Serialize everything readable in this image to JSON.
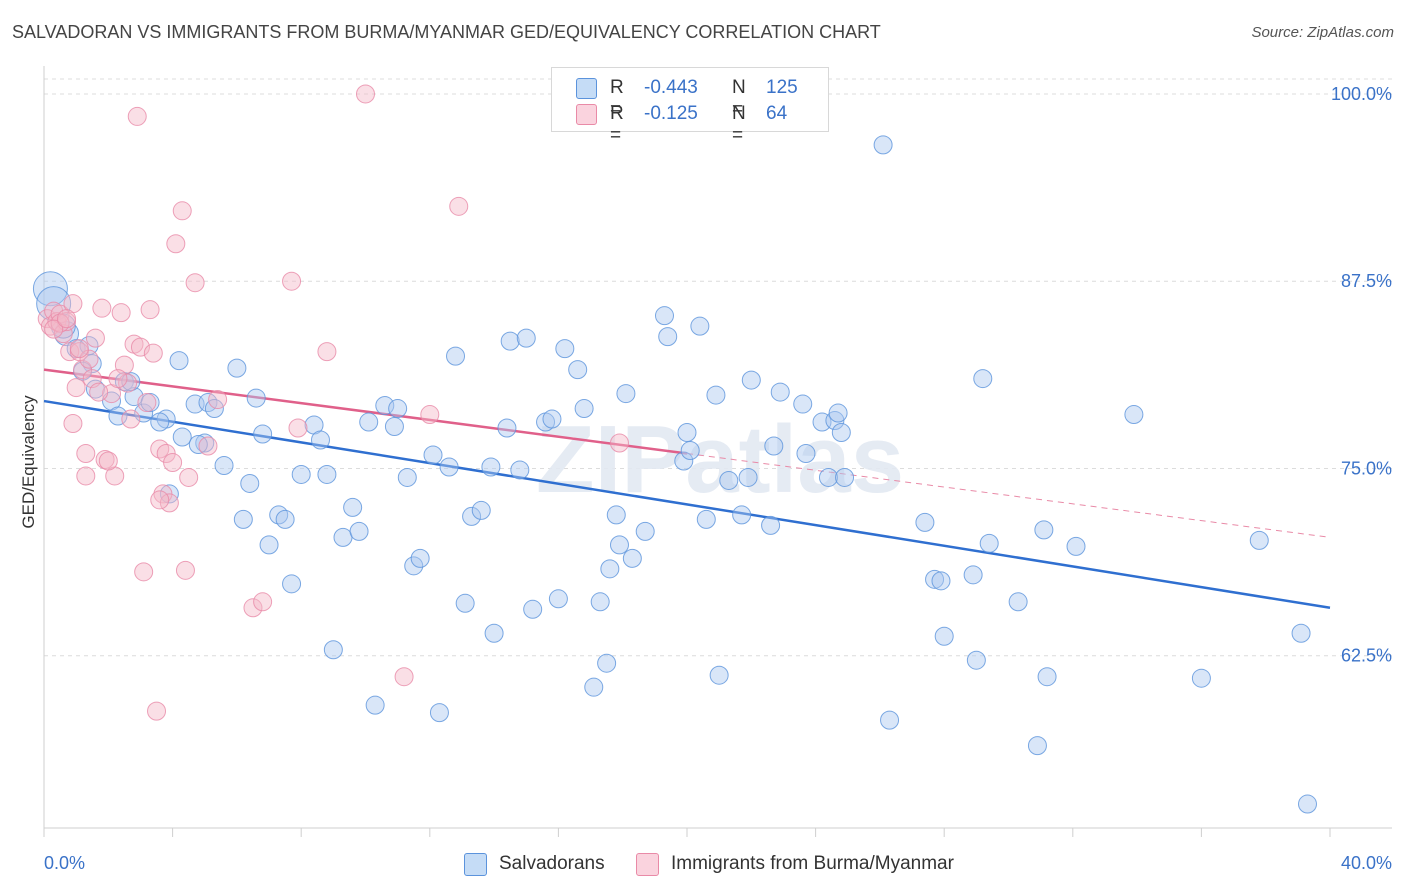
{
  "title": "SALVADORAN VS IMMIGRANTS FROM BURMA/MYANMAR GED/EQUIVALENCY CORRELATION CHART",
  "source": "Source: ZipAtlas.com",
  "watermark": "ZIPatlas",
  "legend": {
    "rows": [
      {
        "r_label": "R =",
        "r_value": "-0.443",
        "n_label": "N =",
        "n_value": "125",
        "color": "#aac8f0"
      },
      {
        "r_label": "R =",
        "r_value": "-0.125",
        "n_label": "N =",
        "n_value": "64",
        "color": "#f5b8c8"
      }
    ]
  },
  "bottom_legend": [
    {
      "label": "Salvadorans",
      "color": "#aac8f0"
    },
    {
      "label": "Immigrants from Burma/Myanmar",
      "color": "#f5b8c8"
    }
  ],
  "chart_data": {
    "type": "scatter",
    "title": "SALVADORAN VS IMMIGRANTS FROM BURMA/MYANMAR GED/EQUIVALENCY CORRELATION CHART",
    "xlabel": "",
    "ylabel": "GED/Equivalency",
    "xlim": [
      0,
      40
    ],
    "ylim": [
      51,
      102
    ],
    "x_tick_labels": [
      "0.0%",
      "40.0%"
    ],
    "y_ticks": [
      62.5,
      75.0,
      87.5,
      100.0
    ],
    "y_tick_labels": [
      "62.5%",
      "75.0%",
      "87.5%",
      "100.0%"
    ],
    "grid": true,
    "legend_position": "top-center",
    "series": [
      {
        "name": "Salvadorans",
        "color": "#5b93dc",
        "fill": "#aac8f0",
        "trend": {
          "x": [
            0,
            40
          ],
          "y": [
            79.5,
            65.7
          ],
          "style": "solid"
        },
        "points": [
          [
            0.2,
            87.0
          ],
          [
            0.3,
            86.0
          ],
          [
            0.7,
            84.0
          ],
          [
            1.0,
            83.0
          ],
          [
            1.4,
            83.2
          ],
          [
            1.5,
            82.0
          ],
          [
            1.2,
            81.5
          ],
          [
            2.5,
            80.8
          ],
          [
            2.8,
            79.8
          ],
          [
            2.1,
            79.5
          ],
          [
            2.3,
            78.5
          ],
          [
            3.1,
            78.7
          ],
          [
            3.8,
            78.3
          ],
          [
            4.3,
            77.1
          ],
          [
            3.6,
            78.1
          ],
          [
            3.9,
            73.3
          ],
          [
            4.2,
            82.2
          ],
          [
            4.7,
            79.3
          ],
          [
            5.1,
            79.4
          ],
          [
            5.3,
            79.0
          ],
          [
            5.0,
            76.7
          ],
          [
            5.6,
            75.2
          ],
          [
            6.0,
            81.7
          ],
          [
            6.2,
            71.6
          ],
          [
            6.4,
            74.0
          ],
          [
            6.6,
            79.7
          ],
          [
            6.8,
            77.3
          ],
          [
            7.0,
            69.9
          ],
          [
            7.3,
            71.9
          ],
          [
            7.5,
            71.6
          ],
          [
            7.7,
            67.3
          ],
          [
            8.0,
            74.6
          ],
          [
            8.4,
            77.9
          ],
          [
            8.6,
            76.9
          ],
          [
            8.8,
            74.6
          ],
          [
            9.0,
            62.9
          ],
          [
            9.3,
            70.4
          ],
          [
            9.6,
            72.4
          ],
          [
            9.8,
            70.8
          ],
          [
            10.1,
            78.1
          ],
          [
            10.3,
            59.2
          ],
          [
            10.6,
            79.2
          ],
          [
            10.9,
            77.8
          ],
          [
            11.0,
            79.0
          ],
          [
            11.3,
            74.4
          ],
          [
            11.5,
            68.5
          ],
          [
            11.7,
            69.0
          ],
          [
            12.1,
            75.9
          ],
          [
            12.3,
            58.7
          ],
          [
            12.6,
            75.1
          ],
          [
            12.8,
            82.5
          ],
          [
            13.1,
            66.0
          ],
          [
            13.3,
            71.8
          ],
          [
            13.6,
            72.2
          ],
          [
            13.9,
            75.1
          ],
          [
            14.0,
            64.0
          ],
          [
            14.4,
            77.7
          ],
          [
            14.5,
            83.5
          ],
          [
            14.8,
            74.9
          ],
          [
            15.0,
            83.7
          ],
          [
            15.2,
            65.6
          ],
          [
            15.6,
            78.1
          ],
          [
            15.8,
            78.3
          ],
          [
            16.0,
            66.3
          ],
          [
            16.2,
            83.0
          ],
          [
            16.6,
            81.6
          ],
          [
            16.8,
            79.0
          ],
          [
            17.1,
            60.4
          ],
          [
            17.3,
            66.1
          ],
          [
            17.5,
            62.0
          ],
          [
            17.6,
            68.3
          ],
          [
            17.8,
            71.9
          ],
          [
            17.9,
            69.9
          ],
          [
            18.1,
            80.0
          ],
          [
            18.3,
            69.0
          ],
          [
            18.7,
            70.8
          ],
          [
            19.3,
            85.2
          ],
          [
            19.4,
            83.8
          ],
          [
            19.9,
            75.5
          ],
          [
            20.0,
            77.4
          ],
          [
            20.1,
            76.2
          ],
          [
            20.4,
            84.5
          ],
          [
            20.6,
            71.6
          ],
          [
            20.9,
            79.9
          ],
          [
            21.0,
            61.2
          ],
          [
            21.3,
            74.2
          ],
          [
            21.7,
            71.9
          ],
          [
            21.9,
            74.4
          ],
          [
            22.0,
            80.9
          ],
          [
            22.6,
            71.2
          ],
          [
            22.7,
            76.5
          ],
          [
            22.9,
            80.1
          ],
          [
            23.6,
            79.3
          ],
          [
            23.7,
            76.0
          ],
          [
            24.2,
            78.1
          ],
          [
            24.4,
            74.4
          ],
          [
            24.6,
            78.2
          ],
          [
            24.7,
            78.7
          ],
          [
            24.8,
            77.4
          ],
          [
            24.9,
            74.4
          ],
          [
            26.1,
            96.6
          ],
          [
            26.3,
            58.2
          ],
          [
            27.4,
            71.4
          ],
          [
            27.7,
            67.6
          ],
          [
            27.9,
            67.5
          ],
          [
            28.0,
            63.8
          ],
          [
            28.9,
            67.9
          ],
          [
            29.0,
            62.2
          ],
          [
            29.2,
            81.0
          ],
          [
            29.4,
            70.0
          ],
          [
            30.3,
            66.1
          ],
          [
            30.9,
            56.5
          ],
          [
            31.1,
            70.9
          ],
          [
            31.2,
            61.1
          ],
          [
            32.1,
            69.8
          ],
          [
            33.9,
            78.6
          ],
          [
            36.0,
            61.0
          ],
          [
            37.8,
            70.2
          ],
          [
            39.1,
            64.0
          ],
          [
            39.3,
            52.6
          ],
          [
            0.6,
            84.5
          ],
          [
            1.6,
            80.3
          ],
          [
            3.3,
            79.4
          ],
          [
            4.8,
            76.6
          ],
          [
            2.7,
            80.8
          ]
        ]
      },
      {
        "name": "Immigrants from Burma/Myanmar",
        "color": "#e98aa7",
        "fill": "#f5b8c8",
        "trend": {
          "x": [
            0,
            20.0
          ],
          "y": [
            81.6,
            76.0
          ],
          "style": "solid"
        },
        "trend_extension": {
          "x": [
            20.0,
            40
          ],
          "y": [
            76.0,
            70.4
          ],
          "style": "dashed"
        },
        "points": [
          [
            0.1,
            85.0
          ],
          [
            0.2,
            84.5
          ],
          [
            0.3,
            85.5
          ],
          [
            0.4,
            84.8
          ],
          [
            0.5,
            85.3
          ],
          [
            0.6,
            84.0
          ],
          [
            0.7,
            84.8
          ],
          [
            0.8,
            82.8
          ],
          [
            0.9,
            86.0
          ],
          [
            1.0,
            80.4
          ],
          [
            1.1,
            82.8
          ],
          [
            1.2,
            81.6
          ],
          [
            1.3,
            76.0
          ],
          [
            1.4,
            82.3
          ],
          [
            1.5,
            81.0
          ],
          [
            1.6,
            83.7
          ],
          [
            1.8,
            85.7
          ],
          [
            1.9,
            75.6
          ],
          [
            2.1,
            80.0
          ],
          [
            2.2,
            74.5
          ],
          [
            2.4,
            85.4
          ],
          [
            2.5,
            81.9
          ],
          [
            2.6,
            80.7
          ],
          [
            2.8,
            83.3
          ],
          [
            2.9,
            98.5
          ],
          [
            3.0,
            83.1
          ],
          [
            3.1,
            68.1
          ],
          [
            3.2,
            79.4
          ],
          [
            3.3,
            85.6
          ],
          [
            3.4,
            82.7
          ],
          [
            3.5,
            58.8
          ],
          [
            3.6,
            76.3
          ],
          [
            3.7,
            73.3
          ],
          [
            3.8,
            76.0
          ],
          [
            3.9,
            72.7
          ],
          [
            4.0,
            75.4
          ],
          [
            4.1,
            90.0
          ],
          [
            4.3,
            92.2
          ],
          [
            4.4,
            68.2
          ],
          [
            4.5,
            74.4
          ],
          [
            4.7,
            87.4
          ],
          [
            5.1,
            76.5
          ],
          [
            5.4,
            79.6
          ],
          [
            6.5,
            65.7
          ],
          [
            6.8,
            66.1
          ],
          [
            7.7,
            87.5
          ],
          [
            7.9,
            77.7
          ],
          [
            8.8,
            82.8
          ],
          [
            10.0,
            100.0
          ],
          [
            11.2,
            61.1
          ],
          [
            12.0,
            78.6
          ],
          [
            12.9,
            92.5
          ],
          [
            17.9,
            76.7
          ],
          [
            0.5,
            84.7
          ],
          [
            0.9,
            78.0
          ],
          [
            1.3,
            74.5
          ],
          [
            0.3,
            84.3
          ],
          [
            2.0,
            75.5
          ],
          [
            2.7,
            78.3
          ],
          [
            1.1,
            83.0
          ],
          [
            3.6,
            72.9
          ],
          [
            0.7,
            85.0
          ],
          [
            1.7,
            80.1
          ],
          [
            2.3,
            81.0
          ]
        ]
      }
    ]
  }
}
